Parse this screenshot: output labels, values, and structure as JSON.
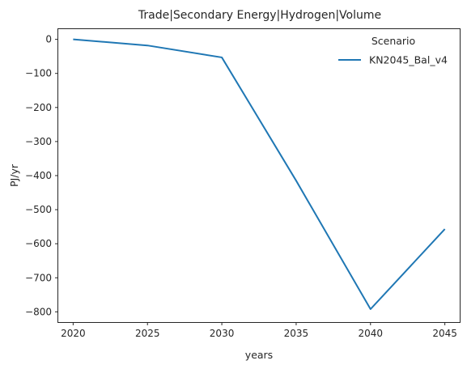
{
  "chart_data": {
    "type": "line",
    "title": "Trade|Secondary Energy|Hydrogen|Volume",
    "xlabel": "years",
    "ylabel": "PJ/yr",
    "x": [
      2020,
      2025,
      2030,
      2035,
      2040,
      2045
    ],
    "xticks": [
      2020,
      2025,
      2030,
      2035,
      2040,
      2045
    ],
    "xlim": [
      2019,
      2046
    ],
    "yticks": [
      0,
      -100,
      -200,
      -300,
      -400,
      -500,
      -600,
      -700,
      -800
    ],
    "ylim": [
      -830,
      30
    ],
    "grid": false,
    "legend": {
      "title": "Scenario",
      "position": "top-right"
    },
    "series": [
      {
        "name": "KN2045_Bal_v4",
        "color": "#1f77b4",
        "values": [
          0,
          -18,
          -53,
          -415,
          -792,
          -557
        ]
      }
    ]
  }
}
